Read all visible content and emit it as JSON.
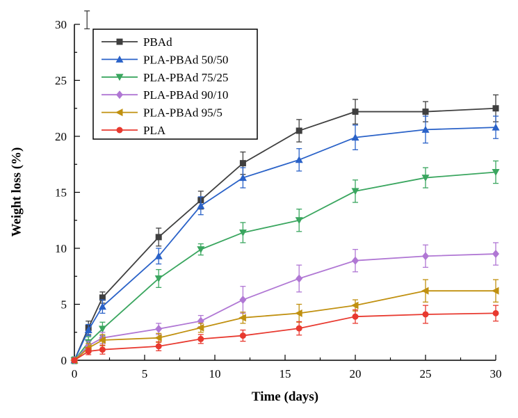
{
  "figure": {
    "background": "#ffffff"
  },
  "chart_data": {
    "type": "line",
    "title": "",
    "xlabel": "Time (days)",
    "ylabel": "Weight loss (%)",
    "xlim": [
      0,
      30
    ],
    "ylim": [
      0,
      30
    ],
    "x_ticks": [
      0,
      5,
      10,
      15,
      20,
      25,
      30
    ],
    "y_ticks": [
      0,
      5,
      10,
      15,
      20,
      25,
      30
    ],
    "grid": false,
    "legend_position": "top-left",
    "x": [
      0,
      1,
      2,
      6,
      9,
      12,
      16,
      20,
      25,
      30
    ],
    "series": [
      {
        "name": "PBAd",
        "marker": "square",
        "color": "#3f3f3f",
        "values": [
          0,
          2.9,
          5.6,
          11.0,
          14.3,
          17.6,
          20.5,
          22.2,
          22.2,
          22.5
        ],
        "errors": [
          0.3,
          0.6,
          0.5,
          0.8,
          0.8,
          1.0,
          1.0,
          1.1,
          0.9,
          1.2
        ]
      },
      {
        "name": "PLA-PBAd 50/50",
        "marker": "triangle-up",
        "color": "#2a62c8",
        "values": [
          0,
          2.7,
          4.8,
          9.3,
          13.8,
          16.3,
          17.9,
          19.9,
          20.6,
          20.8
        ],
        "errors": [
          0.3,
          0.5,
          0.6,
          0.7,
          0.8,
          0.9,
          1.0,
          1.1,
          1.2,
          1.0
        ]
      },
      {
        "name": "PLA-PBAd 75/25",
        "marker": "triangle-down",
        "color": "#3aa65f",
        "values": [
          0,
          1.6,
          2.8,
          7.3,
          9.9,
          11.4,
          12.5,
          15.1,
          16.3,
          16.8
        ],
        "errors": [
          0.3,
          0.5,
          0.6,
          0.8,
          0.5,
          0.9,
          1.0,
          1.0,
          0.9,
          1.0
        ]
      },
      {
        "name": "PLA-PBAd 90/10",
        "marker": "diamond",
        "color": "#b077d4",
        "values": [
          0,
          1.3,
          2.0,
          2.8,
          3.5,
          5.4,
          7.3,
          8.9,
          9.3,
          9.5
        ],
        "errors": [
          0.2,
          0.4,
          0.5,
          0.5,
          0.5,
          1.2,
          1.2,
          1.0,
          1.0,
          1.0
        ]
      },
      {
        "name": "PLA-PBAd 95/5",
        "marker": "triangle-left",
        "color": "#c0900f",
        "values": [
          0,
          1.1,
          1.8,
          2.0,
          2.9,
          3.8,
          4.2,
          4.9,
          6.2,
          6.2
        ],
        "errors": [
          0.2,
          0.4,
          0.5,
          0.4,
          0.4,
          0.5,
          0.8,
          0.5,
          1.0,
          1.0
        ]
      },
      {
        "name": "PLA",
        "marker": "circle",
        "color": "#e8392f",
        "values": [
          0,
          0.8,
          0.95,
          1.25,
          1.9,
          2.2,
          2.85,
          3.9,
          4.1,
          4.2
        ],
        "errors": [
          0.2,
          0.3,
          0.4,
          0.4,
          0.4,
          0.5,
          0.6,
          0.6,
          0.8,
          0.7
        ]
      }
    ],
    "stray_marker": {
      "x": 0.9,
      "y": 30.4,
      "error": 0.8,
      "color": "#3f3f3f",
      "note": "unlabeled clipped error bar at top-left edge of plot"
    }
  }
}
